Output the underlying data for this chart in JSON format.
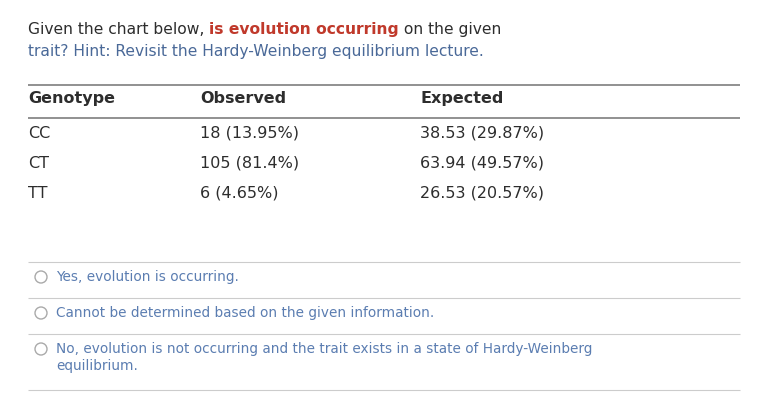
{
  "title_part1": "Given the chart below, ",
  "title_bold": "is evolution occurring",
  "title_part2": " on the given",
  "title_line2": "trait? Hint: Revisit the Hardy-Weinberg equilibrium lecture.",
  "table_headers": [
    "Genotype",
    "Observed",
    "Expected"
  ],
  "table_rows": [
    [
      "CC",
      "18 (13.95%)",
      "38.53 (29.87%)"
    ],
    [
      "CT",
      "105 (81.4%)",
      "63.94 (49.57%)"
    ],
    [
      "TT",
      "6 (4.65%)",
      "26.53 (20.57%)"
    ]
  ],
  "option1": "Yes, evolution is occurring.",
  "option2": "Cannot be determined based on the given information.",
  "option3a": "No, evolution is not occurring and the trait exists in a state of Hardy-Weinberg",
  "option3b": "equilibrium.",
  "bg_color": "#ffffff",
  "color_dark": "#2d2d2d",
  "color_blue": "#4a6998",
  "color_red_bold": "#c0392b",
  "color_option": "#5b7db1",
  "color_line": "#888888",
  "color_sep": "#cccccc"
}
